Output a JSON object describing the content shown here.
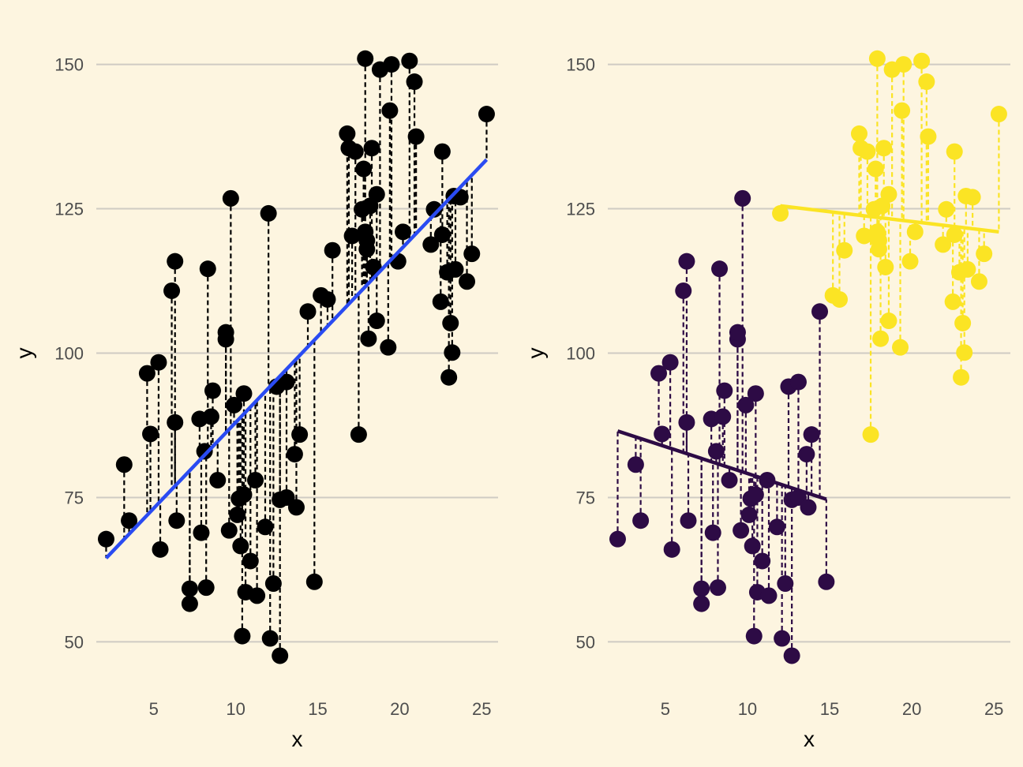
{
  "chart_data": [
    {
      "type": "scatter",
      "xlabel": "x",
      "ylabel": "y",
      "x_ticks": [
        5,
        10,
        15,
        20,
        25
      ],
      "y_ticks": [
        50,
        75,
        100,
        125,
        150
      ],
      "xlim": [
        1.5,
        26
      ],
      "ylim": [
        45,
        155
      ],
      "grid": "horizontal major lines",
      "point_color": "#000000",
      "residual_style": "dashed vertical segments from each point to the fitted line",
      "fit_lines": [
        {
          "x0": 2.1,
          "y0": 64.5,
          "x1": 25.3,
          "y1": 133.5,
          "color": "#2A4BF2"
        }
      ],
      "points": [
        [
          2.1,
          67.8
        ],
        [
          3.2,
          80.7
        ],
        [
          3.5,
          71.0
        ],
        [
          4.6,
          96.5
        ],
        [
          4.8,
          86.0
        ],
        [
          5.3,
          98.4
        ],
        [
          5.4,
          66.0
        ],
        [
          6.1,
          110.8
        ],
        [
          6.3,
          115.9
        ],
        [
          6.3,
          88.0
        ],
        [
          6.4,
          71.0
        ],
        [
          7.2,
          59.2
        ],
        [
          7.2,
          56.6
        ],
        [
          7.8,
          88.6
        ],
        [
          7.9,
          68.9
        ],
        [
          8.1,
          83.0
        ],
        [
          8.2,
          59.4
        ],
        [
          8.3,
          114.6
        ],
        [
          8.5,
          89.0
        ],
        [
          8.6,
          93.5
        ],
        [
          8.9,
          78.0
        ],
        [
          9.4,
          102.4
        ],
        [
          9.4,
          103.6
        ],
        [
          9.6,
          69.3
        ],
        [
          9.7,
          126.8
        ],
        [
          9.9,
          91.0
        ],
        [
          10.1,
          72.0
        ],
        [
          10.2,
          74.8
        ],
        [
          10.3,
          66.6
        ],
        [
          10.4,
          51.0
        ],
        [
          10.5,
          75.5
        ],
        [
          10.5,
          93.0
        ],
        [
          10.6,
          58.6
        ],
        [
          10.9,
          64.0
        ],
        [
          11.2,
          78.0
        ],
        [
          11.3,
          58.0
        ],
        [
          11.8,
          69.9
        ],
        [
          12.0,
          124.2
        ],
        [
          12.1,
          50.6
        ],
        [
          12.3,
          60.1
        ],
        [
          12.5,
          94.2
        ],
        [
          12.7,
          74.6
        ],
        [
          12.7,
          47.6
        ],
        [
          13.1,
          75.0
        ],
        [
          13.1,
          95.0
        ],
        [
          13.6,
          82.5
        ],
        [
          13.7,
          73.3
        ],
        [
          13.9,
          85.9
        ],
        [
          14.4,
          107.2
        ],
        [
          14.8,
          60.4
        ],
        [
          15.2,
          110.0
        ],
        [
          15.6,
          109.3
        ],
        [
          15.9,
          117.8
        ],
        [
          16.8,
          138.0
        ],
        [
          16.9,
          135.5
        ],
        [
          17.1,
          120.3
        ],
        [
          17.3,
          134.9
        ],
        [
          17.5,
          85.9
        ],
        [
          17.7,
          124.9
        ],
        [
          17.8,
          131.9
        ],
        [
          17.9,
          151.0
        ],
        [
          17.9,
          121.0
        ],
        [
          18.0,
          118.0
        ],
        [
          18.0,
          119.5
        ],
        [
          18.1,
          102.5
        ],
        [
          18.2,
          125.5
        ],
        [
          18.3,
          135.5
        ],
        [
          18.4,
          114.9
        ],
        [
          18.6,
          105.6
        ],
        [
          18.6,
          127.5
        ],
        [
          18.8,
          149.1
        ],
        [
          19.3,
          101.0
        ],
        [
          19.4,
          142.0
        ],
        [
          19.5,
          150.0
        ],
        [
          19.9,
          115.9
        ],
        [
          20.2,
          121.0
        ],
        [
          20.6,
          150.6
        ],
        [
          20.9,
          147.0
        ],
        [
          21.0,
          137.5
        ],
        [
          21.9,
          118.8
        ],
        [
          22.1,
          124.9
        ],
        [
          22.5,
          108.9
        ],
        [
          22.6,
          134.9
        ],
        [
          22.6,
          120.5
        ],
        [
          22.9,
          114.0
        ],
        [
          23.0,
          95.8
        ],
        [
          23.1,
          105.2
        ],
        [
          23.2,
          100.1
        ],
        [
          23.3,
          127.2
        ],
        [
          23.4,
          114.5
        ],
        [
          23.7,
          127.0
        ],
        [
          24.1,
          112.4
        ],
        [
          24.4,
          117.2
        ],
        [
          25.3,
          141.4
        ]
      ]
    },
    {
      "type": "scatter",
      "xlabel": "x",
      "ylabel": "y",
      "x_ticks": [
        5,
        10,
        15,
        20,
        25
      ],
      "y_ticks": [
        50,
        75,
        100,
        125,
        150
      ],
      "xlim": [
        1.5,
        26
      ],
      "ylim": [
        45,
        155
      ],
      "grid": "horizontal major lines",
      "residual_style": "dashed vertical segments from each point to its group's fitted line",
      "fit_lines": [
        {
          "x0": 2.1,
          "y0": 86.5,
          "x1": 14.8,
          "y1": 74.7,
          "color": "#2D0B45"
        },
        {
          "x0": 12.0,
          "y0": 125.5,
          "x1": 25.3,
          "y1": 121.0,
          "color": "#FBE424"
        }
      ],
      "groups": [
        {
          "color": "#2D0B45",
          "points": [
            [
              2.1,
              67.8
            ],
            [
              3.2,
              80.7
            ],
            [
              3.5,
              71.0
            ],
            [
              4.6,
              96.5
            ],
            [
              4.8,
              86.0
            ],
            [
              5.3,
              98.4
            ],
            [
              5.4,
              66.0
            ],
            [
              6.1,
              110.8
            ],
            [
              6.3,
              115.9
            ],
            [
              6.3,
              88.0
            ],
            [
              6.4,
              71.0
            ],
            [
              7.2,
              59.2
            ],
            [
              7.2,
              56.6
            ],
            [
              7.8,
              88.6
            ],
            [
              7.9,
              68.9
            ],
            [
              8.1,
              83.0
            ],
            [
              8.2,
              59.4
            ],
            [
              8.3,
              114.6
            ],
            [
              8.5,
              89.0
            ],
            [
              8.6,
              93.5
            ],
            [
              8.9,
              78.0
            ],
            [
              9.4,
              102.4
            ],
            [
              9.4,
              103.6
            ],
            [
              9.6,
              69.3
            ],
            [
              9.7,
              126.8
            ],
            [
              9.9,
              91.0
            ],
            [
              10.1,
              72.0
            ],
            [
              10.2,
              74.8
            ],
            [
              10.3,
              66.6
            ],
            [
              10.4,
              51.0
            ],
            [
              10.5,
              75.5
            ],
            [
              10.5,
              93.0
            ],
            [
              10.6,
              58.6
            ],
            [
              10.9,
              64.0
            ],
            [
              11.2,
              78.0
            ],
            [
              11.3,
              58.0
            ],
            [
              11.8,
              69.9
            ],
            [
              12.1,
              50.6
            ],
            [
              12.3,
              60.1
            ],
            [
              12.5,
              94.2
            ],
            [
              12.7,
              74.6
            ],
            [
              12.7,
              47.6
            ],
            [
              13.1,
              75.0
            ],
            [
              13.1,
              95.0
            ],
            [
              13.6,
              82.5
            ],
            [
              13.7,
              73.3
            ],
            [
              13.9,
              85.9
            ],
            [
              14.4,
              107.2
            ],
            [
              14.8,
              60.4
            ]
          ]
        },
        {
          "color": "#FBE424",
          "points": [
            [
              12.0,
              124.2
            ],
            [
              15.2,
              110.0
            ],
            [
              15.6,
              109.3
            ],
            [
              15.9,
              117.8
            ],
            [
              16.8,
              138.0
            ],
            [
              16.9,
              135.5
            ],
            [
              17.1,
              120.3
            ],
            [
              17.3,
              134.9
            ],
            [
              17.5,
              85.9
            ],
            [
              17.7,
              124.9
            ],
            [
              17.8,
              131.9
            ],
            [
              17.9,
              151.0
            ],
            [
              17.9,
              121.0
            ],
            [
              18.0,
              118.0
            ],
            [
              18.0,
              119.5
            ],
            [
              18.1,
              102.5
            ],
            [
              18.2,
              125.5
            ],
            [
              18.3,
              135.5
            ],
            [
              18.4,
              114.9
            ],
            [
              18.6,
              105.6
            ],
            [
              18.6,
              127.5
            ],
            [
              18.8,
              149.1
            ],
            [
              19.3,
              101.0
            ],
            [
              19.4,
              142.0
            ],
            [
              19.5,
              150.0
            ],
            [
              19.9,
              115.9
            ],
            [
              20.2,
              121.0
            ],
            [
              20.6,
              150.6
            ],
            [
              20.9,
              147.0
            ],
            [
              21.0,
              137.5
            ],
            [
              21.9,
              118.8
            ],
            [
              22.1,
              124.9
            ],
            [
              22.5,
              108.9
            ],
            [
              22.6,
              134.9
            ],
            [
              22.6,
              120.5
            ],
            [
              22.9,
              114.0
            ],
            [
              23.0,
              95.8
            ],
            [
              23.1,
              105.2
            ],
            [
              23.2,
              100.1
            ],
            [
              23.3,
              127.2
            ],
            [
              23.4,
              114.5
            ],
            [
              23.7,
              127.0
            ],
            [
              24.1,
              112.4
            ],
            [
              24.4,
              117.2
            ],
            [
              25.3,
              141.4
            ]
          ]
        }
      ]
    }
  ]
}
